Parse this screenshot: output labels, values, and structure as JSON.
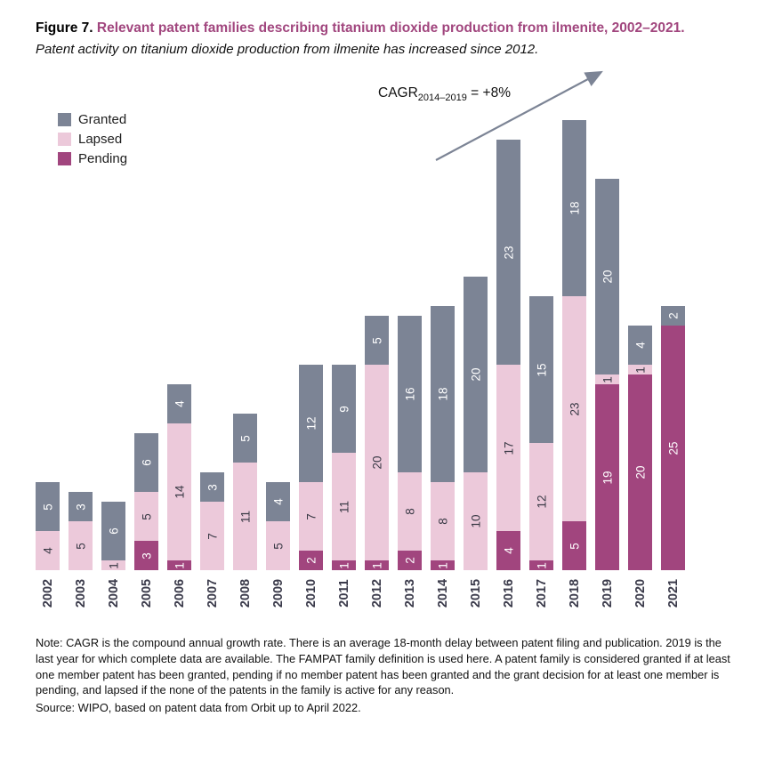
{
  "figure": {
    "label": "Figure 7.",
    "title": "Relevant patent families describing titanium dioxide production from ilmenite, 2002–2021.",
    "subtitle": "Patent activity on titanium dioxide production from ilmenite has increased since 2012."
  },
  "legend": [
    {
      "label": "Granted",
      "color": "#7c8495"
    },
    {
      "label": "Lapsed",
      "color": "#ecc9da"
    },
    {
      "label": "Pending",
      "color": "#a1457e"
    }
  ],
  "annotation": {
    "prefix": "CAGR",
    "subscript": "2014–2019",
    "suffix": " = +8%",
    "arrow_color": "#7c8495"
  },
  "chart_data": {
    "type": "bar",
    "stacked": true,
    "title": "Relevant patent families describing titanium dioxide production from ilmenite, 2002–2021",
    "xlabel": "",
    "ylabel": "",
    "ylim": [
      0,
      46
    ],
    "grid": false,
    "legend_position": "top-left",
    "categories": [
      "2002",
      "2003",
      "2004",
      "2005",
      "2006",
      "2007",
      "2008",
      "2009",
      "2010",
      "2011",
      "2012",
      "2013",
      "2014",
      "2015",
      "2016",
      "2017",
      "2018",
      "2019",
      "2020",
      "2021"
    ],
    "series": [
      {
        "name": "Pending",
        "color": "#a1457e",
        "label_color": "#ffffff",
        "values": [
          0,
          0,
          0,
          3,
          1,
          0,
          0,
          0,
          2,
          1,
          1,
          2,
          1,
          0,
          4,
          1,
          5,
          19,
          20,
          25
        ]
      },
      {
        "name": "Lapsed",
        "color": "#ecc9da",
        "label_color": "#3a3a46",
        "values": [
          4,
          5,
          1,
          5,
          14,
          7,
          11,
          5,
          7,
          11,
          20,
          8,
          8,
          10,
          17,
          12,
          23,
          1,
          1,
          0
        ]
      },
      {
        "name": "Granted",
        "color": "#7c8495",
        "label_color": "#ffffff",
        "values": [
          5,
          3,
          6,
          6,
          4,
          3,
          5,
          4,
          12,
          9,
          5,
          16,
          18,
          20,
          23,
          15,
          18,
          20,
          4,
          2
        ]
      }
    ]
  },
  "note": "Note: CAGR is the compound annual growth rate. There is an average 18-month delay between patent filing and publication. 2019 is the last year for which complete data are available. The FAMPAT family definition is used here. A patent family is considered granted if at least one member patent has been granted, pending if no member patent has been granted and the grant decision for at least one member is pending, and lapsed if the none of the patents in the family is active for any reason.",
  "source": "Source: WIPO, based on patent data from Orbit up to April 2022."
}
